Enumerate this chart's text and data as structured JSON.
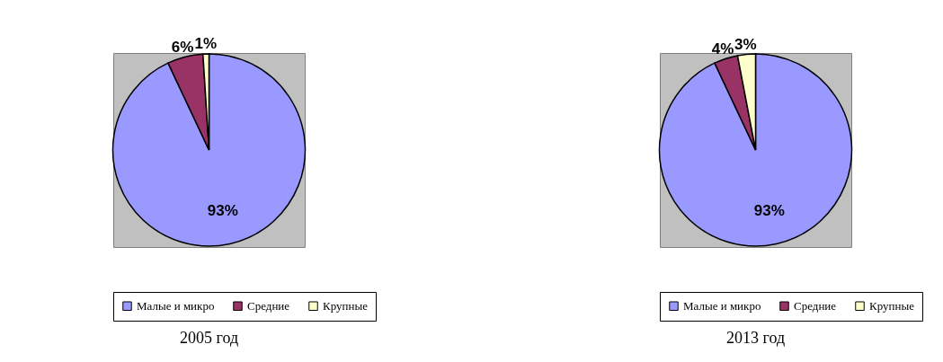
{
  "chart_data": [
    {
      "type": "pie",
      "title": "2005 год",
      "categories": [
        "Малые и микро",
        "Средние",
        "Крупные"
      ],
      "values": [
        93,
        6,
        1
      ],
      "colors": [
        "#9999ff",
        "#993366",
        "#ffffcc"
      ],
      "value_labels": [
        "93%",
        "6%",
        "1%"
      ],
      "legend": "bottom"
    },
    {
      "type": "pie",
      "title": "2013 год",
      "categories": [
        "Малые и микро",
        "Средние",
        "Крупные"
      ],
      "values": [
        93,
        4,
        3
      ],
      "colors": [
        "#9999ff",
        "#993366",
        "#ffffcc"
      ],
      "value_labels": [
        "93%",
        "4%",
        "3%"
      ],
      "legend": "bottom"
    }
  ]
}
